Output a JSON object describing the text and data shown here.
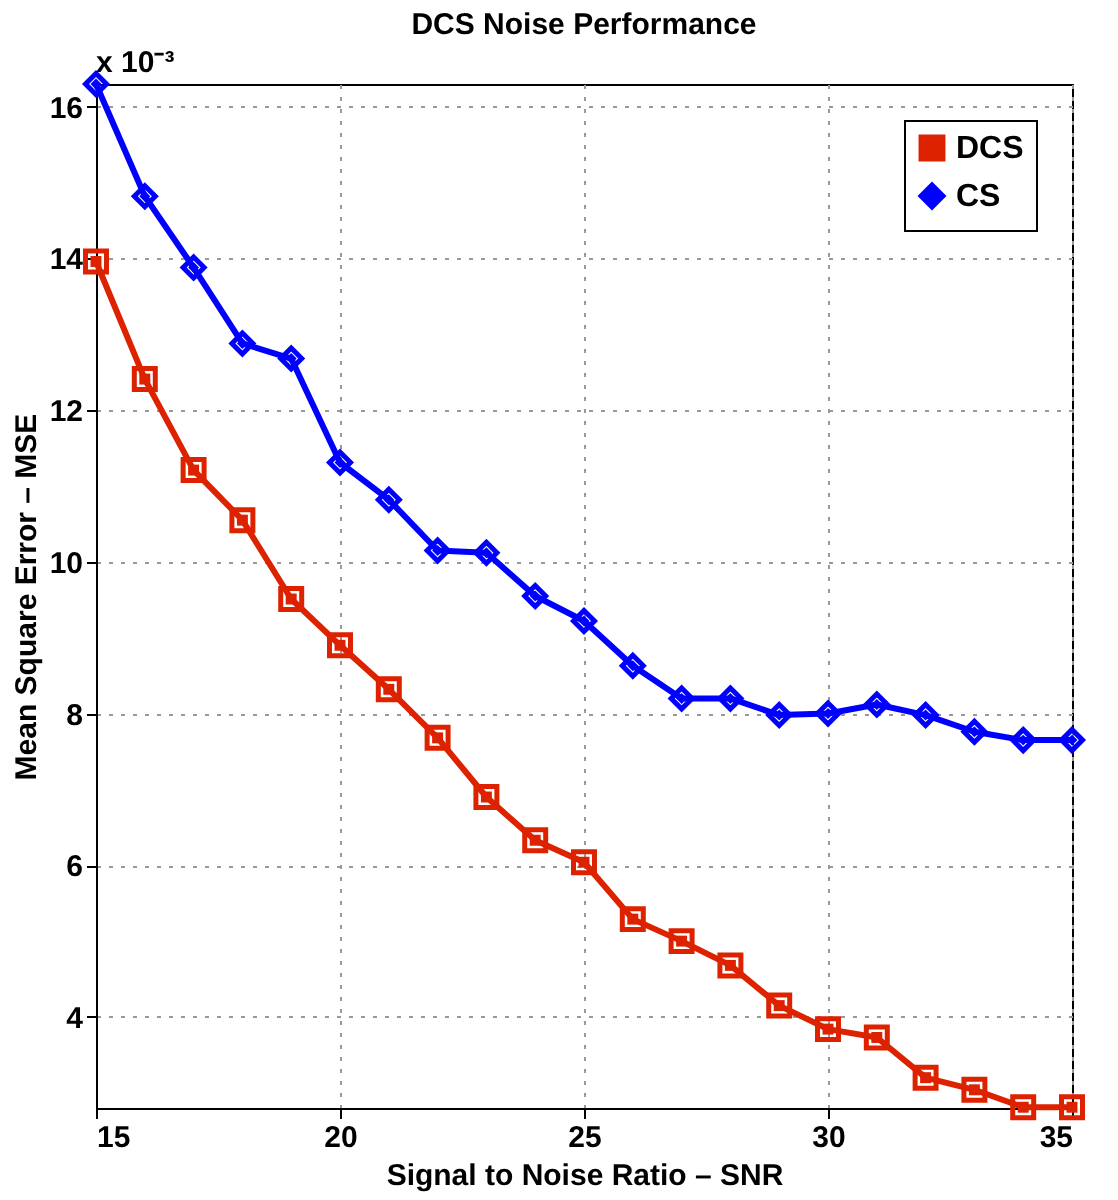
{
  "chart_data": {
    "type": "line",
    "title": "DCS Noise Performance",
    "xlabel": "Signal to Noise Ratio – SNR",
    "ylabel": "Mean Square Error – MSE",
    "annotations": [
      "x 10⁻³"
    ],
    "x": [
      15,
      16,
      17,
      18,
      19,
      20,
      21,
      22,
      23,
      24,
      25,
      26,
      27,
      28,
      29,
      30,
      31,
      32,
      33,
      34,
      35
    ],
    "series": [
      {
        "name": "DCS",
        "color": "#dd2200",
        "marker": "square",
        "values": [
          13.96,
          12.41,
          11.21,
          10.55,
          9.51,
          8.9,
          8.32,
          7.68,
          6.9,
          6.33,
          6.04,
          5.29,
          5.0,
          4.68,
          4.15,
          3.84,
          3.73,
          3.2,
          3.04,
          2.81,
          2.81
        ]
      },
      {
        "name": "CS",
        "color": "#0000ff",
        "marker": "diamond",
        "values": [
          16.3,
          14.82,
          13.88,
          12.88,
          12.68,
          11.31,
          10.82,
          10.15,
          10.12,
          9.55,
          9.22,
          8.63,
          8.2,
          8.2,
          7.98,
          8.0,
          8.12,
          7.98,
          7.76,
          7.65,
          7.65
        ]
      }
    ],
    "xlim": [
      15,
      35
    ],
    "xticks": [
      15,
      20,
      25,
      30,
      35
    ],
    "ylim": [
      2.8,
      16.3
    ],
    "yticks": [
      4,
      6,
      8,
      10,
      12,
      14,
      16
    ],
    "grid": true,
    "legend": "top right",
    "line_style": "solid"
  }
}
